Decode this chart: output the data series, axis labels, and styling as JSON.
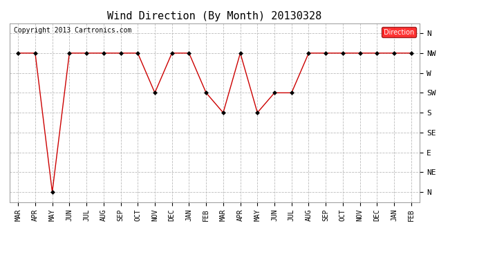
{
  "title": "Wind Direction (By Month) 20130328",
  "copyright": "Copyright 2013 Cartronics.com",
  "legend_label": "Direction",
  "legend_color": "#ff0000",
  "line_color": "#cc0000",
  "background_color": "#ffffff",
  "plot_bg_color": "#ffffff",
  "x_months": [
    "MAR",
    "APR",
    "MAY",
    "JUN",
    "JUL",
    "AUG",
    "SEP",
    "OCT",
    "NOV",
    "DEC",
    "JAN",
    "FEB",
    "MAR",
    "APR",
    "MAY",
    "JUN",
    "JUL",
    "AUG",
    "SEP",
    "OCT",
    "NOV",
    "DEC",
    "JAN",
    "FEB"
  ],
  "y_tick_labels": [
    "N",
    "NW",
    "W",
    "SW",
    "S",
    "SE",
    "E",
    "NE",
    "N"
  ],
  "y_tick_positions": [
    8,
    7,
    6,
    5,
    4,
    3,
    2,
    1,
    0
  ],
  "data_values": [
    7,
    7,
    0,
    7,
    7,
    7,
    7,
    7,
    5,
    7,
    7,
    5,
    4,
    7,
    4,
    5,
    5,
    7,
    7,
    7,
    7,
    7,
    7,
    7
  ],
  "grid_color": "#bbbbbb",
  "marker_color": "#000000",
  "marker_size": 3,
  "title_fontsize": 11,
  "tick_fontsize": 7,
  "ylabel_fontsize": 8,
  "copyright_fontsize": 7
}
